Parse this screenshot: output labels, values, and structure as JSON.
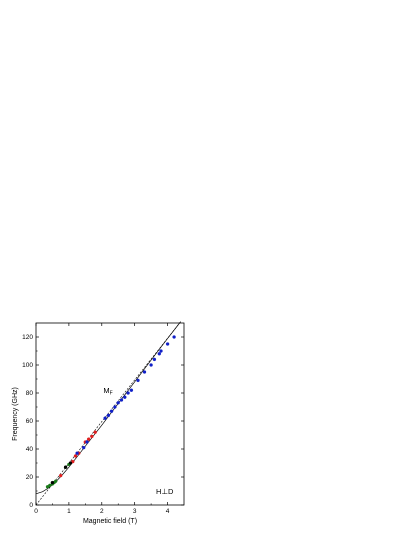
{
  "chart_data": {
    "type": "scatter",
    "title": "",
    "xlabel": "Magnetic field (T)",
    "ylabel": "Frequency (GHz)",
    "xlim": [
      0,
      4.5
    ],
    "ylim": [
      0,
      130
    ],
    "xticks": [
      0,
      1,
      2,
      3,
      4
    ],
    "yticks": [
      0,
      20,
      40,
      60,
      80,
      100,
      120
    ],
    "grid": false,
    "annotations": [
      {
        "text": "M",
        "sub": "F",
        "at": [
          2.05,
          80
        ]
      },
      {
        "text": "H⊥D",
        "at": [
          3.65,
          8
        ]
      }
    ],
    "series": [
      {
        "color": "#1a7a1a",
        "marker": "circle",
        "x": [
          0.35,
          0.42,
          0.5,
          0.55,
          0.6,
          0.9,
          1.0
        ],
        "y": [
          13,
          14,
          15,
          16,
          17,
          27,
          29
        ]
      },
      {
        "color": "#e02020",
        "marker": "circle",
        "x": [
          0.75,
          1.12,
          1.2,
          1.3,
          1.5,
          1.6,
          1.7,
          1.8
        ],
        "y": [
          21,
          31,
          35,
          37,
          45,
          47,
          49,
          52
        ]
      },
      {
        "color": "#1020c8",
        "marker": "circle",
        "x": [
          1.25,
          1.45,
          1.55,
          2.1,
          2.2,
          2.3,
          2.4,
          2.5,
          2.6,
          2.7,
          2.8,
          2.9,
          3.1,
          3.3,
          3.5,
          3.6,
          3.75,
          3.8,
          4.0,
          4.2
        ],
        "y": [
          37,
          41,
          45,
          62,
          64,
          67,
          70,
          73,
          75,
          77,
          80,
          82,
          89,
          95,
          100,
          104,
          108,
          110,
          115,
          120
        ]
      },
      {
        "color": "#000000",
        "marker": "circle",
        "x": [
          0.5,
          0.9,
          1.05
        ],
        "y": [
          16,
          27,
          30
        ]
      }
    ],
    "fits": [
      {
        "style": "solid",
        "color": "#000000",
        "x": [
          0,
          0.2,
          0.4,
          0.6,
          0.8,
          1.0,
          1.2,
          1.5,
          2.0,
          2.5,
          3.0,
          3.5,
          4.0,
          4.4
        ],
        "y": [
          8,
          9.5,
          12.5,
          16.5,
          21.5,
          27,
          33,
          42,
          57,
          72.5,
          88,
          103.5,
          119,
          131
        ]
      },
      {
        "style": "dashed",
        "color": "#000000",
        "x": [
          0,
          4.4
        ],
        "y": [
          0,
          131
        ]
      }
    ]
  }
}
